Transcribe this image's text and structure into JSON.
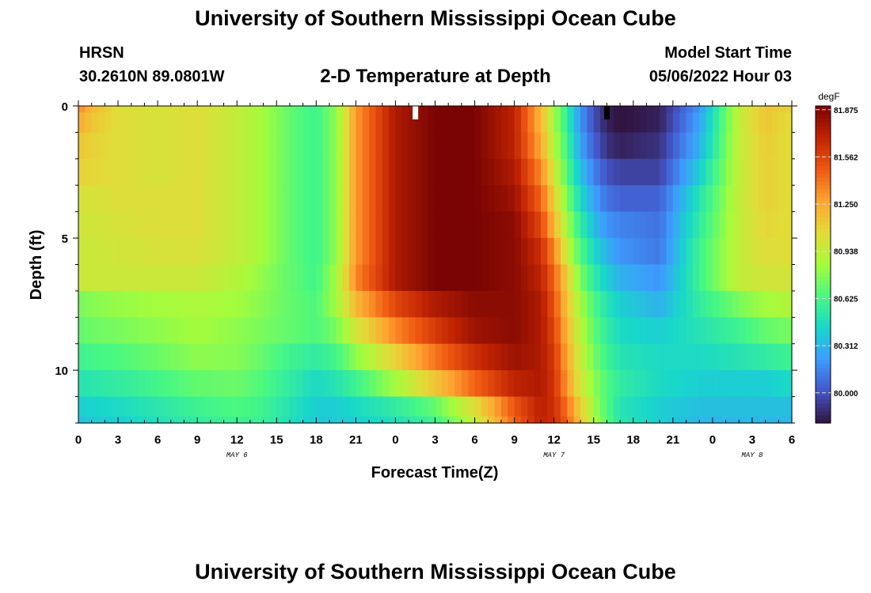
{
  "header": {
    "title": "University of Southern Mississippi Ocean Cube",
    "station": "HRSN",
    "coordinates": "30.2610N  89.0801W",
    "subtitle": "2-D Temperature at Depth",
    "model_start_label": "Model Start Time",
    "model_start_value": "05/06/2022 Hour 03"
  },
  "footer": {
    "title": "University of Southern Mississippi Ocean Cube"
  },
  "chart_data": {
    "type": "heatmap",
    "title": "2-D Temperature at Depth",
    "xlabel": "Forecast Time(Z)",
    "ylabel": "Depth (ft)",
    "x_unit": "hours since 2022-05-06 00Z",
    "xlim": [
      0,
      54
    ],
    "ylim": [
      0,
      12
    ],
    "x_ticks": [
      0,
      3,
      6,
      9,
      12,
      15,
      18,
      21,
      24,
      27,
      30,
      33,
      36,
      39,
      42,
      45,
      48,
      51,
      54
    ],
    "x_tick_labels": [
      "0",
      "3",
      "6",
      "9",
      "12",
      "15",
      "18",
      "21",
      "0",
      "3",
      "6",
      "9",
      "12",
      "15",
      "18",
      "21",
      "0",
      "3",
      "6"
    ],
    "y_ticks": [
      0,
      5,
      10
    ],
    "y_tick_labels": [
      "0",
      "5",
      "10"
    ],
    "date_labels": [
      {
        "x": 12,
        "text": "MAY 6"
      },
      {
        "x": 36,
        "text": "MAY 7"
      },
      {
        "x": 51,
        "text": "MAY 8"
      }
    ],
    "colorbar": {
      "unit": "degF",
      "vmin": 79.8,
      "vmax": 81.9,
      "ticks": [
        81.875,
        81.562,
        81.25,
        80.938,
        80.625,
        80.312,
        80.0
      ],
      "tick_labels": [
        "81.875",
        "81.562",
        "81.250",
        "80.938",
        "80.625",
        "80.312",
        "80.000"
      ]
    },
    "depth_levels_ft": [
      0,
      0.5,
      1.5,
      2.5,
      3.5,
      4.5,
      5.5,
      6.5,
      7.5,
      8.5,
      9.5,
      10.5,
      11.5,
      12
    ],
    "time_keys_hours": [
      0,
      1,
      3,
      6,
      9,
      12,
      14,
      16,
      18,
      19.5,
      21,
      24,
      27,
      30,
      33,
      35,
      36,
      37,
      38,
      39,
      40,
      41,
      44,
      47,
      50,
      52,
      54
    ],
    "temperature_degF": [
      [
        81.35,
        81.2,
        81.05,
        81.02,
        81.05,
        80.95,
        80.85,
        80.7,
        80.6,
        80.8,
        81.3,
        81.75,
        81.9,
        81.9,
        81.7,
        81.2,
        80.85,
        80.55,
        80.2,
        80.0,
        79.85,
        79.8,
        79.85,
        80.2,
        80.95,
        81.15,
        81.1
      ],
      [
        81.25,
        81.15,
        81.05,
        81.02,
        81.05,
        80.95,
        80.85,
        80.7,
        80.6,
        80.8,
        81.3,
        81.75,
        81.9,
        81.9,
        81.7,
        81.2,
        80.85,
        80.55,
        80.2,
        80.0,
        79.85,
        79.8,
        79.85,
        80.25,
        80.95,
        81.15,
        81.05
      ],
      [
        81.15,
        81.1,
        81.05,
        81.02,
        81.05,
        80.95,
        80.85,
        80.7,
        80.6,
        80.8,
        81.3,
        81.75,
        81.9,
        81.9,
        81.7,
        81.25,
        80.9,
        80.6,
        80.25,
        80.05,
        79.9,
        79.85,
        79.9,
        80.3,
        80.95,
        81.12,
        81.05
      ],
      [
        81.1,
        81.08,
        81.05,
        81.02,
        81.05,
        80.95,
        80.85,
        80.7,
        80.6,
        80.8,
        81.3,
        81.75,
        81.9,
        81.9,
        81.75,
        81.35,
        81.0,
        80.65,
        80.35,
        80.15,
        80.0,
        79.95,
        79.95,
        80.4,
        80.95,
        81.1,
        81.05
      ],
      [
        81.02,
        81.02,
        81.04,
        81.04,
        81.05,
        80.95,
        80.85,
        80.7,
        80.6,
        80.8,
        81.3,
        81.75,
        81.9,
        81.9,
        81.8,
        81.45,
        81.1,
        80.75,
        80.45,
        80.25,
        80.1,
        80.05,
        80.05,
        80.5,
        80.95,
        81.1,
        81.05
      ],
      [
        81.0,
        81.0,
        81.02,
        81.04,
        81.05,
        80.95,
        80.85,
        80.7,
        80.6,
        80.8,
        81.3,
        81.75,
        81.9,
        81.9,
        81.85,
        81.55,
        81.2,
        80.85,
        80.55,
        80.35,
        80.2,
        80.15,
        80.1,
        80.55,
        80.95,
        81.08,
        81.05
      ],
      [
        80.98,
        80.98,
        81.0,
        81.02,
        81.03,
        80.95,
        80.85,
        80.7,
        80.6,
        80.8,
        81.3,
        81.75,
        81.9,
        81.9,
        81.85,
        81.65,
        81.35,
        80.95,
        80.65,
        80.45,
        80.3,
        80.2,
        80.12,
        80.6,
        80.95,
        81.05,
        81.05
      ],
      [
        80.98,
        80.98,
        80.98,
        80.98,
        80.98,
        80.9,
        80.8,
        80.7,
        80.62,
        80.85,
        81.35,
        81.75,
        81.9,
        81.9,
        81.85,
        81.7,
        81.45,
        81.1,
        80.75,
        80.55,
        80.4,
        80.3,
        80.2,
        80.6,
        80.95,
        81.0,
        81.0
      ],
      [
        80.75,
        80.78,
        80.82,
        80.85,
        80.88,
        80.85,
        80.78,
        80.7,
        80.65,
        80.85,
        81.2,
        81.55,
        81.75,
        81.85,
        81.85,
        81.75,
        81.5,
        81.15,
        80.85,
        80.65,
        80.5,
        80.4,
        80.3,
        80.55,
        80.75,
        80.85,
        80.9
      ],
      [
        80.7,
        80.72,
        80.75,
        80.8,
        80.85,
        80.8,
        80.75,
        80.7,
        80.65,
        80.75,
        81.0,
        81.35,
        81.6,
        81.8,
        81.85,
        81.75,
        81.55,
        81.2,
        80.9,
        80.7,
        80.55,
        80.45,
        80.4,
        80.5,
        80.6,
        80.7,
        80.75
      ],
      [
        80.6,
        80.62,
        80.65,
        80.72,
        80.8,
        80.78,
        80.7,
        80.6,
        80.55,
        80.62,
        80.8,
        81.1,
        81.4,
        81.65,
        81.8,
        81.75,
        81.6,
        81.25,
        80.95,
        80.75,
        80.6,
        80.5,
        80.45,
        80.45,
        80.5,
        80.55,
        80.6
      ],
      [
        80.5,
        80.52,
        80.55,
        80.62,
        80.7,
        80.72,
        80.65,
        80.55,
        80.45,
        80.5,
        80.6,
        80.85,
        81.15,
        81.45,
        81.7,
        81.75,
        81.62,
        81.3,
        81.0,
        80.8,
        80.65,
        80.55,
        80.45,
        80.4,
        80.4,
        80.4,
        80.45
      ],
      [
        80.4,
        80.42,
        80.45,
        80.52,
        80.6,
        80.65,
        80.6,
        80.5,
        80.4,
        80.4,
        80.45,
        80.55,
        80.7,
        81.05,
        81.5,
        81.72,
        81.65,
        81.4,
        81.1,
        80.85,
        80.65,
        80.5,
        80.4,
        80.35,
        80.35,
        80.35,
        80.35
      ],
      [
        80.35,
        80.38,
        80.4,
        80.48,
        80.55,
        80.6,
        80.58,
        80.48,
        80.38,
        80.38,
        80.4,
        80.48,
        80.6,
        80.95,
        81.45,
        81.7,
        81.65,
        81.45,
        81.15,
        80.9,
        80.68,
        80.52,
        80.4,
        80.32,
        80.32,
        80.32,
        80.32
      ]
    ]
  }
}
